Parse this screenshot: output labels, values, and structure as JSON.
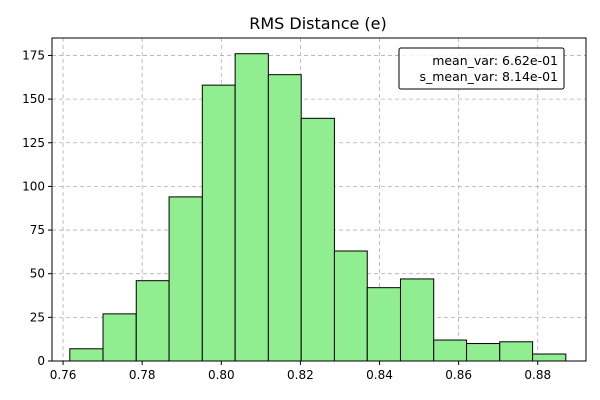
{
  "chart_data": {
    "type": "bar",
    "title": "RMS Distance (e)",
    "xlabel": "",
    "ylabel": "",
    "x_ticks": [
      0.76,
      0.78,
      0.8,
      0.82,
      0.84,
      0.86,
      0.88
    ],
    "x_tick_labels": [
      "0.76",
      "0.78",
      "0.80",
      "0.82",
      "0.84",
      "0.86",
      "0.88"
    ],
    "y_ticks": [
      0,
      25,
      50,
      75,
      100,
      125,
      150,
      175
    ],
    "y_tick_labels": [
      "0",
      "25",
      "50",
      "75",
      "100",
      "125",
      "150",
      "175"
    ],
    "xlim": [
      0.7572,
      0.8922
    ],
    "ylim": [
      0,
      185
    ],
    "bin_edges": [
      0.7617,
      0.7701,
      0.7785,
      0.7868,
      0.7952,
      0.8035,
      0.8119,
      0.8202,
      0.8286,
      0.8369,
      0.8453,
      0.8537,
      0.862,
      0.8704,
      0.8787,
      0.8871
    ],
    "counts": [
      7,
      27,
      46,
      94,
      158,
      176,
      164,
      139,
      63,
      42,
      47,
      12,
      10,
      11,
      4
    ],
    "bar_color": "#90ee90",
    "edge_color": "#000000",
    "grid": true,
    "grid_color": "#b0b0b0",
    "legend_position": "top-right",
    "annotations": [
      "mean_var: 6.62e-01",
      "s_mean_var: 8.14e-01"
    ]
  }
}
